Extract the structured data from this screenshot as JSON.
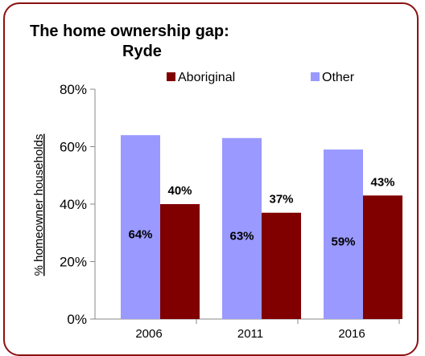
{
  "chart_data": {
    "type": "bar",
    "title_line1": "The home ownership gap:",
    "title_line2": "Ryde",
    "xlabel": "",
    "ylabel": "% homeowner households",
    "categories": [
      "2006",
      "2011",
      "2016"
    ],
    "series": [
      {
        "name": "Other",
        "color": "#9999ff",
        "values": [
          64,
          63,
          59
        ],
        "labels": [
          "64%",
          "63%",
          "59%"
        ]
      },
      {
        "name": "Aboriginal",
        "color": "#800000",
        "values": [
          40,
          37,
          43
        ],
        "labels": [
          "40%",
          "37%",
          "43%"
        ]
      }
    ],
    "legend_order": [
      "Aboriginal",
      "Other"
    ],
    "legend_position": "top",
    "ylim": [
      0,
      80
    ],
    "yticks": [
      "0%",
      "20%",
      "40%",
      "60%",
      "80%"
    ],
    "ytick_values": [
      0,
      20,
      40,
      60,
      80
    ],
    "grid": false
  },
  "colors": {
    "border": "#8a1212"
  }
}
